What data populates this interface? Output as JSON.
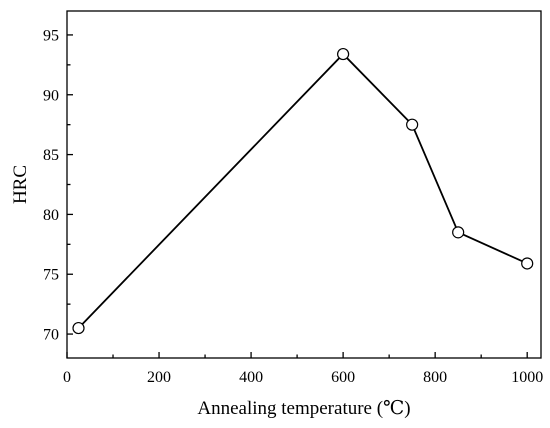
{
  "chart_data": {
    "type": "line",
    "title": "",
    "xlabel": "Annealing temperature (℃)",
    "ylabel": "HRC",
    "xlim": [
      0,
      1030
    ],
    "ylim": [
      68,
      97
    ],
    "xticks": [
      0,
      200,
      400,
      600,
      800,
      1000
    ],
    "yticks": [
      70,
      75,
      80,
      85,
      90,
      95
    ],
    "grid": false,
    "legend": "none",
    "series": [
      {
        "x": [
          25,
          600,
          750,
          850,
          1000
        ],
        "y": [
          70.5,
          93.4,
          87.5,
          78.5,
          75.9
        ],
        "marker": "open-circle",
        "color": "#000000"
      }
    ]
  }
}
